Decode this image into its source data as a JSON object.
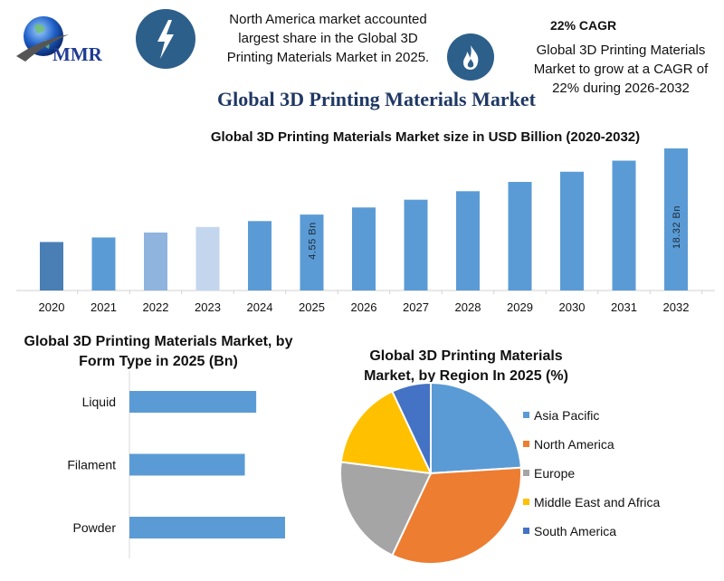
{
  "header": {
    "logo_text": "MMR",
    "left_icon": "lightning-bolt-icon",
    "left_note": "North America market accounted largest share in the Global 3D Printing Materials Market in 2025.",
    "right_icon": "flame-icon",
    "cagr_heading": "22% CAGR",
    "right_note": "Global 3D Printing Materials Market to grow at a CAGR of 22% during 2026-2032",
    "icon_circle_color": "#2d5f8b"
  },
  "main_title": "Global 3D Printing Materials Market",
  "chart_data": [
    {
      "type": "bar",
      "title": "Global 3D Printing Materials Market size in USD Billion (2020-2032)",
      "categories": [
        "2020",
        "2021",
        "2022",
        "2023",
        "2024",
        "2025",
        "2026",
        "2027",
        "2028",
        "2029",
        "2030",
        "2031",
        "2032"
      ],
      "values": [
        1.68,
        2.05,
        2.5,
        3.06,
        3.73,
        4.55,
        5.55,
        6.77,
        8.26,
        10.08,
        12.3,
        15.0,
        18.32
      ],
      "data_labels": {
        "2025": "4.55 Bn",
        "2032": "18.32 Bn"
      },
      "colors": [
        "#4a7fb5",
        "#5b9bd5",
        "#8fb4de",
        "#c3d6ee",
        "#5b9bd5",
        "#5b9bd5",
        "#5b9bd5",
        "#5b9bd5",
        "#5b9bd5",
        "#5b9bd5",
        "#5b9bd5",
        "#5b9bd5",
        "#5b9bd5"
      ],
      "xlabel": "",
      "ylabel": "",
      "grid": false
    },
    {
      "type": "bar",
      "orientation": "horizontal",
      "title": "Global 3D Printing Materials Market, by Form Type in 2025 (Bn)",
      "categories": [
        "Liquid",
        "Filament",
        "Powder"
      ],
      "values": [
        1.45,
        1.32,
        1.78
      ],
      "color": "#5b9bd5",
      "grid": false
    },
    {
      "type": "pie",
      "title": "Global 3D Printing Materials Market, by Region In 2025 (%)",
      "categories": [
        "Asia Pacific",
        "North America",
        "Europe",
        "Middle East and Africa",
        "South America"
      ],
      "values": [
        24,
        33,
        20,
        16,
        7
      ],
      "colors": [
        "#5b9bd5",
        "#ed7d31",
        "#a5a5a5",
        "#ffc000",
        "#4472c4"
      ],
      "legend": "right"
    }
  ]
}
